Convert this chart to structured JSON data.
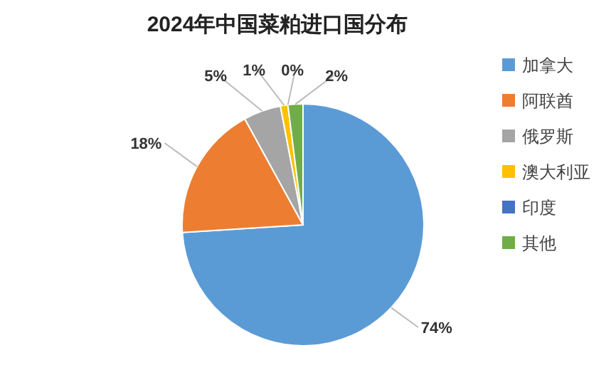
{
  "chart_data": {
    "type": "pie",
    "title": "2024年中国菜粕进口国分布",
    "categories": [
      "加拿大",
      "阿联酋",
      "俄罗斯",
      "澳大利亚",
      "印度",
      "其他"
    ],
    "values": [
      74,
      18,
      5,
      1,
      0,
      2
    ],
    "colors": [
      "#5b9bd5",
      "#ed7d31",
      "#a5a5a5",
      "#ffc000",
      "#4472c4",
      "#70ad47"
    ],
    "value_labels": [
      "74%",
      "18%",
      "5%",
      "1%",
      "0%",
      "2%"
    ],
    "legend": "right"
  }
}
